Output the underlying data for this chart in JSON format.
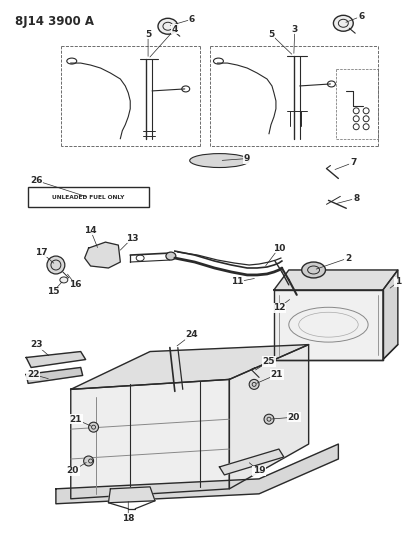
{
  "title": "8J14 3900 A",
  "bg": "#ffffff",
  "lc": "#2a2a2a",
  "fs_title": 8.5,
  "fs_num": 6.5,
  "fig_w": 4.03,
  "fig_h": 5.33,
  "dpi": 100
}
